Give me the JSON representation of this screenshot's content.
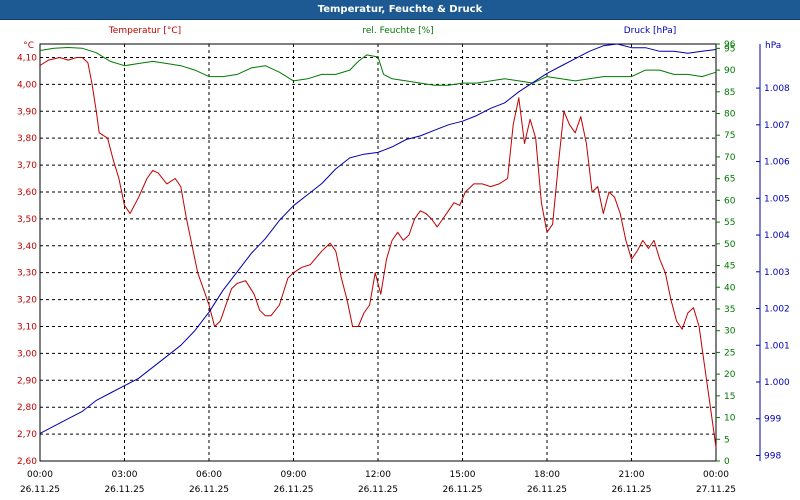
{
  "window": {
    "title": "Temperatur, Feuchte & Druck"
  },
  "colors": {
    "background": "#ffffff",
    "title_bar": "#1d5a93",
    "temperature": "#c00000",
    "humidity": "#007a00",
    "pressure": "#0000b0",
    "grid": "#000000",
    "axis_text": "#000000"
  },
  "chart_data": {
    "type": "line",
    "title": "Temperatur, Feuchte & Druck",
    "grid": true,
    "x_ticks": [
      {
        "time": "00:00",
        "date": "26.11.25"
      },
      {
        "time": "03:00",
        "date": "26.11.25"
      },
      {
        "time": "06:00",
        "date": "26.11.25"
      },
      {
        "time": "09:00",
        "date": "26.11.25"
      },
      {
        "time": "12:00",
        "date": "26.11.25"
      },
      {
        "time": "15:00",
        "date": "26.11.25"
      },
      {
        "time": "18:00",
        "date": "26.11.25"
      },
      {
        "time": "21:00",
        "date": "26.11.25"
      },
      {
        "time": "00:00",
        "date": "27.11.25"
      }
    ],
    "x_range_hours": [
      0,
      24
    ],
    "axes": {
      "temperature": {
        "label": "Temperatur [°C]",
        "unit": "°C",
        "range": [
          2.6,
          4.15
        ],
        "ticks": [
          "4,10",
          "4,00",
          "3,90",
          "3,80",
          "3,70",
          "3,60",
          "3,50",
          "3,40",
          "3,30",
          "3,20",
          "3,10",
          "3,00",
          "2,90",
          "2,80",
          "2,70",
          "2,60"
        ]
      },
      "humidity": {
        "label": "rel. Feuchte [%]",
        "unit": "%",
        "range": [
          0,
          96
        ],
        "ticks": [
          "96",
          "95",
          "90",
          "85",
          "80",
          "75",
          "70",
          "65",
          "60",
          "55",
          "50",
          "45",
          "40",
          "35",
          "30",
          "25",
          "20",
          "15",
          "10",
          "5",
          "0"
        ]
      },
      "pressure": {
        "label": "Druck [hPa]",
        "unit": "hPa",
        "range": [
          997.85,
          1009.2
        ],
        "ticks": [
          "1.008",
          "1.007",
          "1.006",
          "1.005",
          "1.004",
          "1.003",
          "1.002",
          "1.001",
          "1.000",
          "999",
          "998"
        ]
      }
    },
    "series": [
      {
        "name": "Temperatur",
        "axis": "temperature",
        "hours": [
          0,
          0.3,
          0.7,
          1,
          1.3,
          1.5,
          1.7,
          1.85,
          2,
          2.1,
          2.4,
          2.6,
          2.8,
          3,
          3.2,
          3.5,
          3.8,
          4,
          4.2,
          4.5,
          4.8,
          5,
          5.2,
          5.4,
          5.6,
          5.8,
          6,
          6.2,
          6.4,
          6.6,
          6.8,
          7,
          7.3,
          7.6,
          7.8,
          8,
          8.2,
          8.5,
          8.8,
          9,
          9.3,
          9.6,
          10,
          10.3,
          10.5,
          10.7,
          10.9,
          11.1,
          11.3,
          11.5,
          11.7,
          11.9,
          12.1,
          12.3,
          12.5,
          12.7,
          12.9,
          13.1,
          13.3,
          13.5,
          13.7,
          13.9,
          14.1,
          14.3,
          14.5,
          14.7,
          14.9,
          15.1,
          15.4,
          15.7,
          16,
          16.3,
          16.6,
          16.8,
          17,
          17.2,
          17.4,
          17.6,
          17.8,
          18,
          18.2,
          18.4,
          18.6,
          18.8,
          19,
          19.2,
          19.4,
          19.6,
          19.8,
          20,
          20.2,
          20.4,
          20.6,
          20.8,
          21,
          21.2,
          21.4,
          21.6,
          21.8,
          22,
          22.2,
          22.4,
          22.6,
          22.8,
          23,
          23.2,
          23.4,
          23.6,
          23.8,
          24
        ],
        "values": [
          4.07,
          4.09,
          4.1,
          4.09,
          4.1,
          4.1,
          4.08,
          4.0,
          3.9,
          3.82,
          3.8,
          3.72,
          3.65,
          3.55,
          3.52,
          3.58,
          3.65,
          3.68,
          3.67,
          3.63,
          3.65,
          3.62,
          3.5,
          3.4,
          3.3,
          3.24,
          3.18,
          3.1,
          3.12,
          3.18,
          3.24,
          3.26,
          3.27,
          3.22,
          3.16,
          3.14,
          3.14,
          3.18,
          3.28,
          3.3,
          3.32,
          3.33,
          3.38,
          3.41,
          3.38,
          3.28,
          3.2,
          3.1,
          3.1,
          3.15,
          3.18,
          3.3,
          3.22,
          3.35,
          3.42,
          3.45,
          3.42,
          3.44,
          3.5,
          3.53,
          3.52,
          3.5,
          3.47,
          3.5,
          3.53,
          3.56,
          3.55,
          3.6,
          3.63,
          3.63,
          3.62,
          3.63,
          3.65,
          3.85,
          3.95,
          3.78,
          3.87,
          3.8,
          3.56,
          3.45,
          3.48,
          3.7,
          3.9,
          3.85,
          3.82,
          3.88,
          3.78,
          3.6,
          3.62,
          3.52,
          3.6,
          3.58,
          3.52,
          3.42,
          3.35,
          3.38,
          3.42,
          3.39,
          3.42,
          3.35,
          3.3,
          3.2,
          3.12,
          3.09,
          3.15,
          3.17,
          3.1,
          2.95,
          2.8,
          2.65
        ]
      },
      {
        "name": "rel. Feuchte",
        "axis": "humidity",
        "hours": [
          0,
          0.5,
          1,
          1.5,
          2,
          2.5,
          3,
          3.5,
          4,
          4.5,
          5,
          5.5,
          6,
          6.5,
          7,
          7.5,
          8,
          8.5,
          9,
          9.5,
          10,
          10.5,
          11,
          11.3,
          11.6,
          12,
          12.2,
          12.5,
          13,
          13.5,
          14,
          14.5,
          15,
          15.5,
          16,
          16.5,
          17,
          17.5,
          18,
          18.5,
          19,
          19.5,
          20,
          20.5,
          21,
          21.5,
          22,
          22.5,
          23,
          23.5,
          24
        ],
        "values": [
          94.5,
          95,
          95.2,
          95,
          94,
          92,
          91,
          91.5,
          92,
          91.5,
          91,
          90,
          88.5,
          88.5,
          89,
          90.5,
          91,
          89.5,
          87.5,
          88,
          89,
          89,
          90,
          92,
          93.5,
          93,
          89,
          88,
          87.5,
          87,
          86.5,
          86.5,
          87,
          87,
          87.5,
          88,
          87.5,
          87,
          88.5,
          88,
          87.5,
          88,
          88.5,
          88.5,
          88.5,
          90,
          90,
          89,
          89,
          88.5,
          89.5
        ]
      },
      {
        "name": "Druck",
        "axis": "pressure",
        "hours": [
          0,
          0.5,
          1,
          1.5,
          2,
          2.5,
          3,
          3.5,
          4,
          4.5,
          5,
          5.5,
          6,
          6.5,
          7,
          7.5,
          8,
          8.5,
          9,
          9.5,
          10,
          10.5,
          11,
          11.5,
          12,
          12.5,
          13,
          13.5,
          14,
          14.5,
          15,
          15.5,
          16,
          16.5,
          17,
          17.5,
          18,
          18.5,
          19,
          19.5,
          20,
          20.5,
          21,
          21.5,
          22,
          22.5,
          23,
          23.5,
          24
        ],
        "values": [
          998.6,
          998.8,
          999,
          999.2,
          999.5,
          999.7,
          999.9,
          1000.1,
          1000.4,
          1000.7,
          1001,
          1001.4,
          1001.9,
          1002.5,
          1003,
          1003.5,
          1003.9,
          1004.4,
          1004.8,
          1005.1,
          1005.4,
          1005.8,
          1006.1,
          1006.2,
          1006.25,
          1006.4,
          1006.6,
          1006.7,
          1006.85,
          1007,
          1007.1,
          1007.25,
          1007.45,
          1007.6,
          1007.9,
          1008.15,
          1008.4,
          1008.6,
          1008.8,
          1009.0,
          1009.15,
          1009.2,
          1009.1,
          1009.1,
          1009.0,
          1009.0,
          1008.95,
          1009.0,
          1009.05
        ]
      }
    ]
  }
}
